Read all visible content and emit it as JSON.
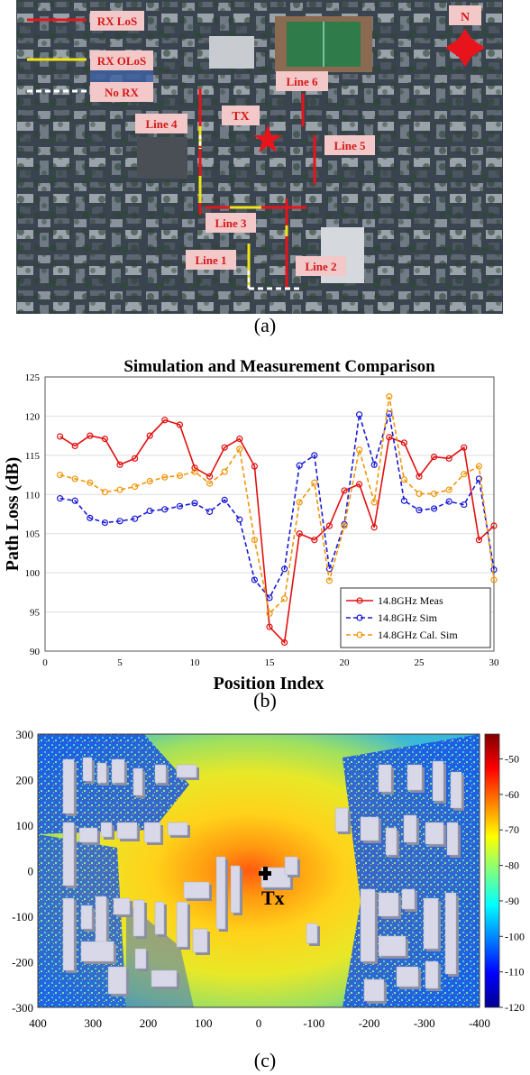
{
  "panel_a": {
    "caption": "(a)",
    "legend": {
      "los": "RX LoS",
      "olos": "RX OLoS",
      "norx": "No RX"
    },
    "north": "N",
    "tx_label": "TX",
    "line_labels": [
      "Line 1",
      "Line 2",
      "Line 3",
      "Line 4",
      "Line 5",
      "Line 6"
    ]
  },
  "panel_b": {
    "caption": "(b)",
    "chart_data": {
      "type": "line",
      "title": "Simulation and Measurement  Comparison",
      "xlabel": "Position Index",
      "ylabel": "Path Loss (dB)",
      "xlim": [
        0,
        30
      ],
      "ylim": [
        90,
        125
      ],
      "xticks": [
        0,
        5,
        10,
        15,
        20,
        25,
        30
      ],
      "yticks": [
        90,
        95,
        100,
        105,
        110,
        115,
        120,
        125
      ],
      "grid": "horizontal",
      "legend_position": "bottom-right",
      "x": [
        1,
        2,
        3,
        4,
        5,
        6,
        7,
        8,
        9,
        10,
        11,
        12,
        13,
        14,
        15,
        16,
        17,
        18,
        19,
        20,
        21,
        22,
        23,
        24,
        25,
        26,
        27,
        28,
        29,
        30
      ],
      "series": [
        {
          "name": "14.8GHz Meas",
          "color": "#e01010",
          "style": "solid",
          "values": [
            117.4,
            116.2,
            117.5,
            117.1,
            113.8,
            114.6,
            117.5,
            119.5,
            118.9,
            113.4,
            112.3,
            116.0,
            117.1,
            113.6,
            93.1,
            91.1,
            105.0,
            104.2,
            106.0,
            110.5,
            111.3,
            105.8,
            117.3,
            116.6,
            112.3,
            114.8,
            114.6,
            116.0,
            104.2,
            106.0
          ]
        },
        {
          "name": "14.8GHz Sim",
          "color": "#1a1ad6",
          "style": "dashed",
          "values": [
            109.5,
            109.2,
            107.0,
            106.4,
            106.6,
            106.9,
            107.9,
            108.1,
            108.5,
            108.9,
            107.8,
            109.3,
            106.8,
            99.1,
            96.8,
            100.5,
            113.7,
            115.0,
            100.5,
            106.2,
            120.2,
            113.8,
            120.3,
            109.2,
            108.0,
            108.2,
            109.1,
            108.7,
            112.0,
            100.4
          ]
        },
        {
          "name": "14.8GHz Cal. Sim",
          "color": "#f0960a",
          "style": "dashed",
          "values": [
            112.5,
            112.0,
            111.5,
            110.3,
            110.6,
            111.0,
            111.7,
            112.2,
            112.4,
            112.9,
            111.4,
            112.9,
            115.8,
            104.2,
            94.8,
            96.7,
            109.0,
            111.5,
            99.0,
            106.0,
            115.7,
            109.0,
            122.5,
            111.9,
            110.1,
            110.1,
            110.6,
            112.6,
            113.6,
            99.1
          ]
        }
      ]
    }
  },
  "panel_c": {
    "caption": "(c)",
    "chart_data": {
      "type": "heatmap",
      "title": "",
      "xlabel": "",
      "ylabel": "",
      "xlim": [
        400,
        -400
      ],
      "ylim": [
        -300,
        300
      ],
      "xticks": [
        "400",
        "300",
        "200",
        "100",
        "0",
        "-100",
        "-200",
        "-300",
        "-400"
      ],
      "yticks": [
        "300",
        "200",
        "100",
        "0",
        "-100",
        "-200",
        "-300"
      ],
      "colorbar_ticks": [
        "-50",
        "-60",
        "-70",
        "-80",
        "-90",
        "-100",
        "-110",
        "-120"
      ],
      "colorbar_range": [
        -120,
        -43
      ],
      "colormap": "jet",
      "tx_label": "Tx",
      "tx_position": [
        -10,
        5
      ]
    }
  }
}
